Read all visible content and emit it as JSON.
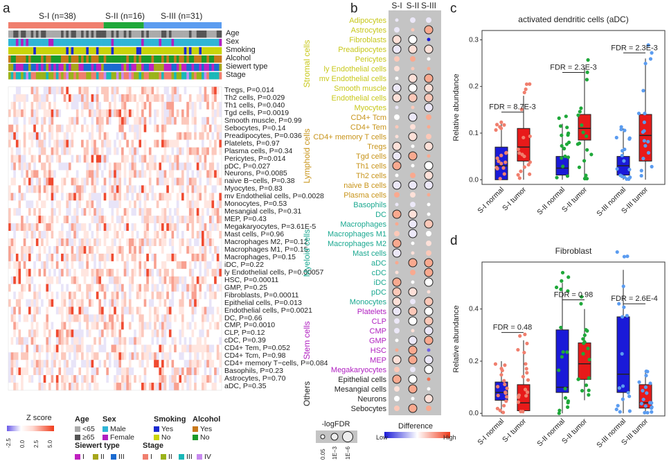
{
  "panels": {
    "a": "a",
    "b": "b",
    "c": "c",
    "d": "d"
  },
  "panel_a": {
    "groups": [
      {
        "label": "S-I (n=38)",
        "count": 38,
        "color": "#f07f6e"
      },
      {
        "label": "S-II (n=16)",
        "count": 16,
        "color": "#1fa83a"
      },
      {
        "label": "S-III (n=31)",
        "count": 31,
        "color": "#5b9cf0"
      }
    ],
    "annotation_tracks": [
      "Age",
      "Sex",
      "Smoking",
      "Alcohol",
      "Siewert type",
      "Stage"
    ],
    "rows": [
      "Tregs, P=0.014",
      "Th2 cells, P=0.029",
      "Th1 cells, P=0.040",
      "Tgd cells, P=0.0019",
      "Smooth muscle, P=0.99",
      "Sebocytes, P=0.14",
      "Preadipocytes, P=0.036",
      "Platelets, P=0.97",
      "Plasma cells, P=0.34",
      "Pericytes, P=0.014",
      "pDC, P=0.027",
      "Neurons, P=0.0085",
      "naive B−cells, P=0.38",
      "Myocytes, P=0.83",
      "mv Endothelial cells, P=0.0028",
      "Monocytes, P=0.53",
      "Mesangial cells, P=0.31",
      "MEP, P=0.43",
      "Megakaryocytes, P=3.61E-5",
      "Mast cells, P=0.96",
      "Macrophages M2, P=0.12",
      "Macrophages M1, P=0.15",
      "Macrophages, P=0.15",
      "iDC, P=0.22",
      "ly Endothelial cells, P=0.00057",
      "HSC, P=0.00011",
      "GMP, P=0.25",
      "Fibroblasts, P=0.00011",
      "Epithelial cells, P=0.013",
      "Endothelial cells, P=0.0021",
      "DC, P=0.66",
      "CMP, P=0.0010",
      "CLP, P=0.12",
      "cDC, P=0.39",
      "CD4+ Tem, P=0.052",
      "CD4+ Tcm, P=0.98",
      "CD4+ memory T−cells, P=0.084",
      "Basophils, P=0.23",
      "Astrocytes, P=0.70",
      "aDC, P=0.35"
    ],
    "zscore_legend": {
      "title": "Z score",
      "ticks": [
        "-2.5",
        "0.0",
        "2.5",
        "5.0"
      ]
    },
    "legends": {
      "age": {
        "title": "Age",
        "items": [
          {
            "label": "<65",
            "color": "#aaaaaa"
          },
          {
            "label": "≥65",
            "color": "#555555"
          }
        ]
      },
      "sex": {
        "title": "Sex",
        "items": [
          {
            "label": "Male",
            "color": "#2fb5d6"
          },
          {
            "label": "Female",
            "color": "#b01fc0"
          }
        ]
      },
      "smoking": {
        "title": "Smoking",
        "items": [
          {
            "label": "Yes",
            "color": "#1a2ad0"
          },
          {
            "label": "No",
            "color": "#c9d40a"
          }
        ]
      },
      "alcohol": {
        "title": "Alcohol",
        "items": [
          {
            "label": "Yes",
            "color": "#c8781a"
          },
          {
            "label": "No",
            "color": "#1a9a2a"
          }
        ]
      },
      "siewert": {
        "title": "Siewert type",
        "items": [
          {
            "label": "I",
            "color": "#c020c0"
          },
          {
            "label": "II",
            "color": "#a6a61a"
          },
          {
            "label": "III",
            "color": "#1a6ad0"
          }
        ]
      },
      "stage": {
        "title": "Stage",
        "items": [
          {
            "label": "I",
            "color": "#f07f6e"
          },
          {
            "label": "II",
            "color": "#9ab31a"
          },
          {
            "label": "III",
            "color": "#1ab8b8"
          },
          {
            "label": "IV",
            "color": "#c88af0"
          }
        ]
      }
    }
  },
  "panel_b": {
    "columns": [
      "S-I",
      "S-II",
      "S-III"
    ],
    "categories": [
      {
        "name": "Stromal cells",
        "color": "#c8c81a",
        "cells": [
          "Adipocytes",
          "Astrocytes",
          "Fibroblasts",
          "Preadipocytes",
          "Pericytes",
          "ly Endothelial cells",
          "mv Endothelial cells",
          "Smooth muscle",
          "Endothelial cells",
          "Myocytes"
        ]
      },
      {
        "name": "Lymphoid cells",
        "color": "#c8941a",
        "cells": [
          "CD4+ Tcm",
          "CD4+ Tem",
          "CD4+ memory T cells",
          "Tregs",
          "Tgd cells",
          "Th1 cells",
          "Th2 cells",
          "naive B cells",
          "Plasma cells"
        ]
      },
      {
        "name": "Myeloid cells",
        "color": "#1aa890",
        "cells": [
          "Basophils",
          "DC",
          "Macrophages",
          "Macrophages M1",
          "Macrophages M2",
          "Mast cells",
          "aDC",
          "cDC",
          "iDC",
          "pDC",
          "Monocytes"
        ]
      },
      {
        "name": "Stem cells",
        "color": "#b020c0",
        "cells": [
          "Platelets",
          "CLP",
          "CMP",
          "GMP",
          "HSC",
          "MEP",
          "Megakaryocytes"
        ]
      },
      {
        "name": "Others",
        "color": "#222222",
        "cells": [
          "Epithelial cells",
          "Mesangial cells",
          "Neurons",
          "Sebocytes"
        ]
      }
    ],
    "size_legend": {
      "title": "-logFDR",
      "ticks": [
        "0.05",
        "1E−3",
        "1E−6"
      ]
    },
    "color_legend": {
      "title": "Difference",
      "low": "Low",
      "high": "High"
    }
  },
  "panel_c": {
    "title": "activated dendritic cells (aDC)",
    "ylabel": "Relative abundance",
    "yticks": [
      "0.0",
      "0.1",
      "0.2",
      "0.3"
    ],
    "categories": [
      "S-I normal",
      "S-I tumor",
      "S-II normal",
      "S-II tumor",
      "S-III normal",
      "S-III tumor"
    ],
    "fdr": [
      "FDR = 8.7E-3",
      "FDR = 2.3E-3",
      "FDR = 2.3E-3"
    ]
  },
  "panel_d": {
    "title": "Fibroblast",
    "ylabel": "Relative abundance",
    "yticks": [
      "0.0",
      "0.2",
      "0.4"
    ],
    "categories": [
      "S-I normal",
      "S-I tumor",
      "S-II normal",
      "S-II tumor",
      "S-III normal",
      "S-III tumor"
    ],
    "fdr": [
      "FDR = 0.48",
      "FDR = 0.98",
      "FDR = 2.6E-4"
    ]
  },
  "chart_data": [
    {
      "type": "box",
      "title": "activated dendritic cells (aDC)",
      "ylabel": "Relative abundance",
      "ylim": [
        -0.01,
        0.32
      ],
      "categories": [
        "S-I normal",
        "S-I tumor",
        "S-II normal",
        "S-II tumor",
        "S-III normal",
        "S-III tumor"
      ],
      "boxes": [
        {
          "q1": 0.0,
          "median": 0.03,
          "q3": 0.07,
          "low": 0.0,
          "high": 0.12,
          "color": "#1a1ad8",
          "points": "#f07f6e"
        },
        {
          "q1": 0.04,
          "median": 0.07,
          "q3": 0.11,
          "low": 0.0,
          "high": 0.18,
          "color": "#e81a1a",
          "points": "#f07f6e"
        },
        {
          "q1": 0.01,
          "median": 0.025,
          "q3": 0.05,
          "low": 0.0,
          "high": 0.12,
          "color": "#1a1ad8",
          "points": "#1fa83a"
        },
        {
          "q1": 0.085,
          "median": 0.11,
          "q3": 0.14,
          "low": 0.0,
          "high": 0.24,
          "color": "#e81a1a",
          "points": "#1fa83a"
        },
        {
          "q1": 0.01,
          "median": 0.03,
          "q3": 0.05,
          "low": 0.0,
          "high": 0.11,
          "color": "#1a1ad8",
          "points": "#5b9cf0"
        },
        {
          "q1": 0.04,
          "median": 0.095,
          "q3": 0.14,
          "low": 0.0,
          "high": 0.26,
          "color": "#e81a1a",
          "points": "#5b9cf0"
        }
      ],
      "fdr_labels": [
        "FDR = 8.7E-3",
        "FDR = 2.3E-3",
        "FDR = 2.3E-3"
      ]
    },
    {
      "type": "box",
      "title": "Fibroblast",
      "ylabel": "Relative abundance",
      "ylim": [
        -0.01,
        0.58
      ],
      "categories": [
        "S-I normal",
        "S-I tumor",
        "S-II normal",
        "S-II tumor",
        "S-III normal",
        "S-III tumor"
      ],
      "boxes": [
        {
          "q1": 0.05,
          "median": 0.08,
          "q3": 0.12,
          "low": 0.0,
          "high": 0.2,
          "color": "#1a1ad8",
          "points": "#f07f6e"
        },
        {
          "q1": 0.01,
          "median": 0.04,
          "q3": 0.11,
          "low": 0.0,
          "high": 0.28,
          "color": "#e81a1a",
          "points": "#f07f6e"
        },
        {
          "q1": 0.08,
          "median": 0.1,
          "q3": 0.32,
          "low": 0.0,
          "high": 0.5,
          "color": "#1a1ad8",
          "points": "#1fa83a"
        },
        {
          "q1": 0.13,
          "median": 0.19,
          "q3": 0.27,
          "low": 0.05,
          "high": 0.4,
          "color": "#e81a1a",
          "points": "#1fa83a"
        },
        {
          "q1": 0.08,
          "median": 0.15,
          "q3": 0.37,
          "low": 0.0,
          "high": 0.55,
          "color": "#1a1ad8",
          "points": "#5b9cf0"
        },
        {
          "q1": 0.02,
          "median": 0.04,
          "q3": 0.11,
          "low": 0.0,
          "high": 0.16,
          "color": "#e81a1a",
          "points": "#5b9cf0"
        }
      ],
      "fdr_labels": [
        "FDR = 0.48",
        "FDR = 0.98",
        "FDR = 2.6E-4"
      ]
    }
  ]
}
